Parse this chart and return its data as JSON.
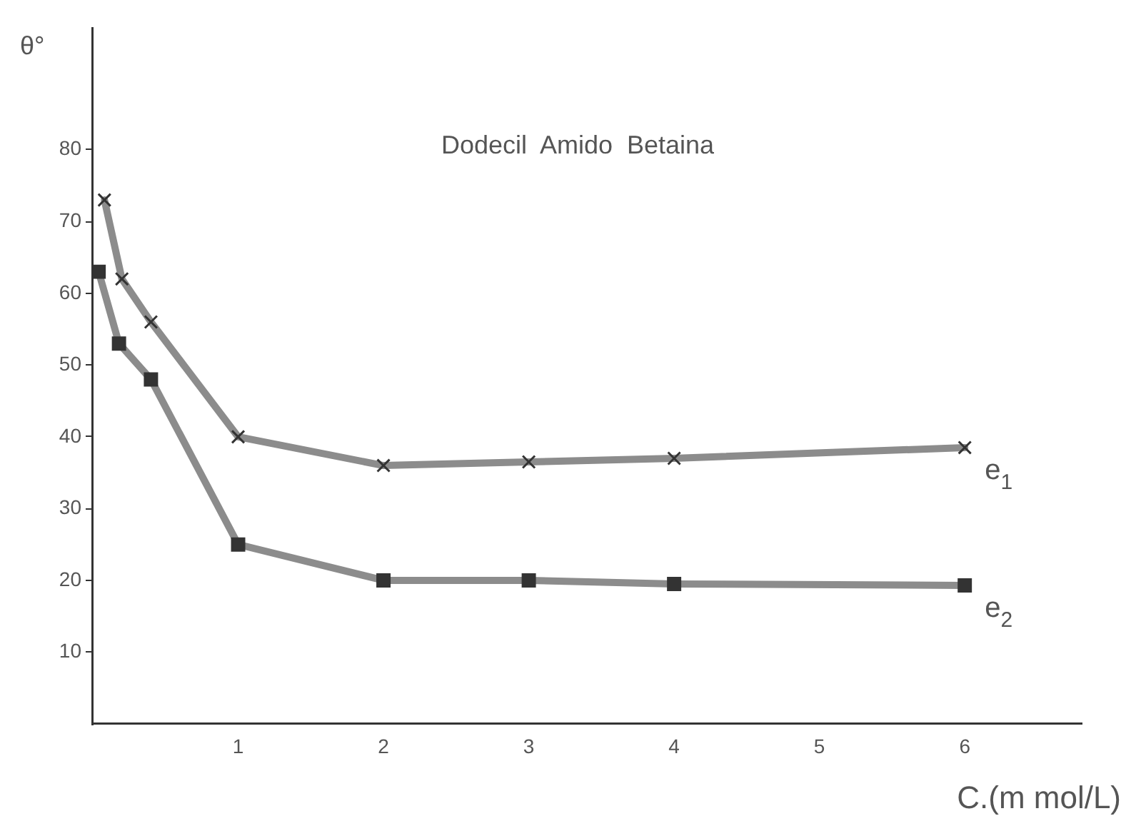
{
  "chart_data": {
    "type": "line",
    "title": "Dodecil  Amido  Betaina",
    "xlabel": "C.(m mol/L)",
    "ylabel": "θ°",
    "series": [
      {
        "name": "e$_{1}$",
        "color": "#8c8c8c",
        "marker": "cross",
        "x": [
          0.08,
          0.2,
          0.4,
          1,
          2,
          3,
          4,
          6
        ],
        "values": [
          73,
          62,
          56,
          40,
          36,
          36.5,
          37,
          38.5
        ]
      },
      {
        "name": "e$_{2}$",
        "color": "#8c8c8c",
        "marker": "square",
        "x": [
          0.04,
          0.18,
          0.4,
          1,
          2,
          3,
          4,
          6
        ],
        "values": [
          63,
          53,
          48,
          25,
          20,
          20,
          19.5,
          19.3
        ]
      }
    ],
    "xlim": [
      0,
      6.8
    ],
    "xticks": [
      1,
      2,
      3,
      4,
      5,
      6
    ],
    "ylim": [
      0,
      97
    ],
    "yticks": [
      10,
      20,
      30,
      40,
      50,
      60,
      70,
      80
    ],
    "grid": false,
    "legend": false
  }
}
